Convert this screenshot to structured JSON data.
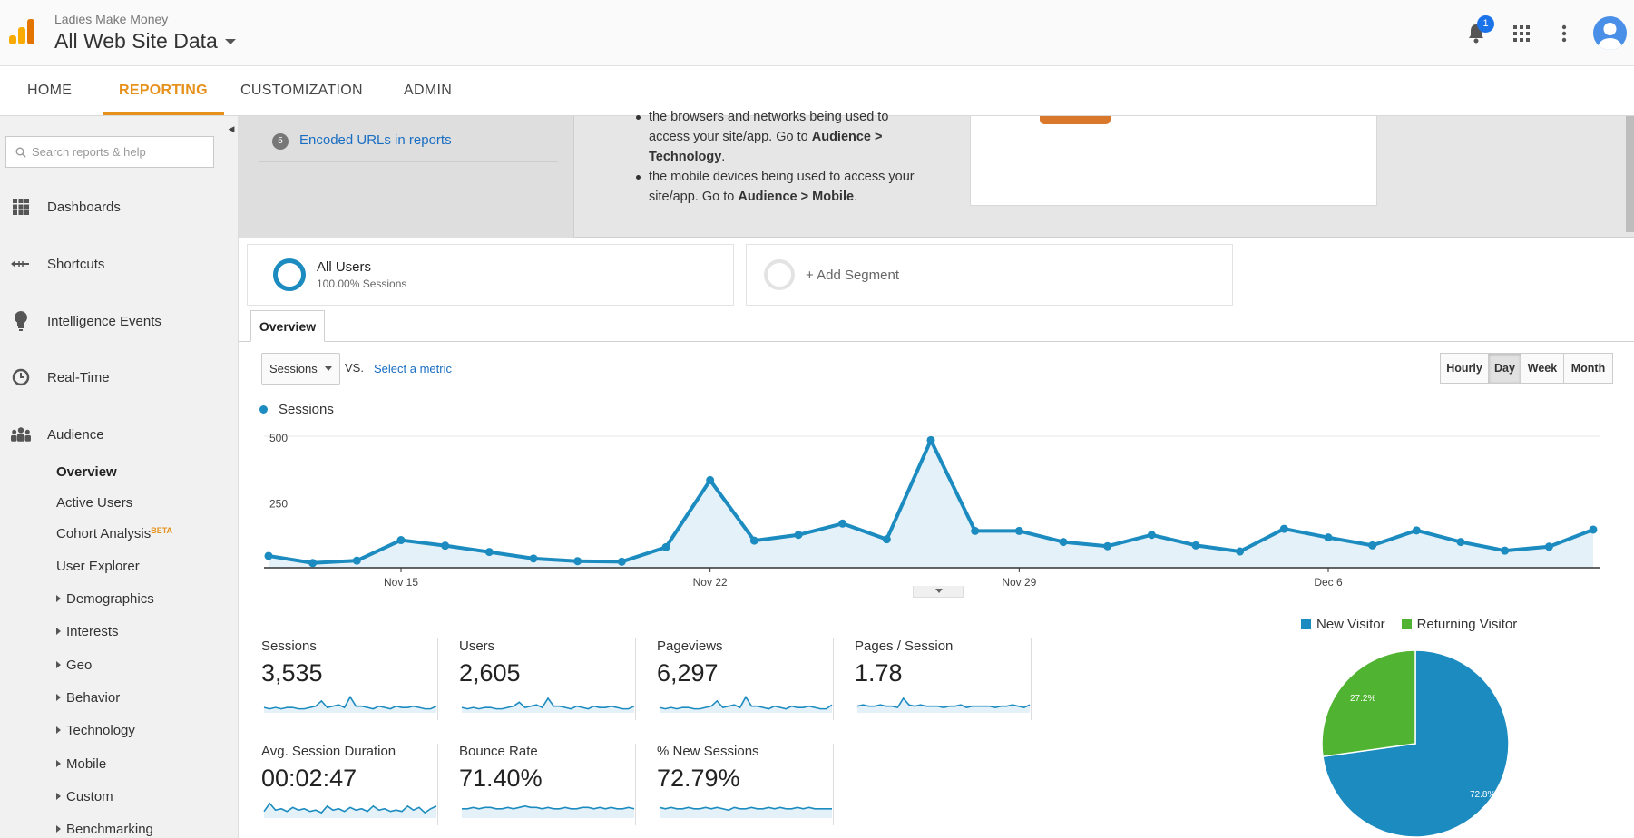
{
  "header": {
    "account": "Ladies Make Money",
    "property": "All Web Site Data",
    "notification_count": "1"
  },
  "nav": {
    "home": "HOME",
    "reporting": "REPORTING",
    "customization": "CUSTOMIZATION",
    "admin": "ADMIN"
  },
  "sidebar": {
    "search_placeholder": "Search reports & help",
    "items": [
      {
        "label": "Dashboards",
        "icon": "grid-icon"
      },
      {
        "label": "Shortcuts",
        "icon": "shortcut-arrow-icon"
      },
      {
        "label": "Intelligence Events",
        "icon": "lightbulb-icon"
      },
      {
        "label": "Real-Time",
        "icon": "clock-icon"
      },
      {
        "label": "Audience",
        "icon": "people-icon"
      }
    ],
    "audience_sub": {
      "overview": "Overview",
      "active_users": "Active Users",
      "cohort": "Cohort Analysis",
      "cohort_badge": "BETA",
      "user_explorer": "User Explorer",
      "groups": [
        "Demographics",
        "Interests",
        "Geo",
        "Behavior",
        "Technology",
        "Mobile",
        "Custom",
        "Benchmarking"
      ]
    }
  },
  "banner": {
    "item_number": "5",
    "encoded_urls": "Encoded URLs in reports",
    "line1_top": "the browsers and networks being used to",
    "line1_a": "access your site/app. Go to ",
    "line1_b": "Audience >",
    "line1_c": "Technology",
    "line1_d": ".",
    "line2_a": "the mobile devices being used to access your",
    "line2_b": "site/app. Go to ",
    "line2_c": "Audience > Mobile",
    "line2_d": "."
  },
  "segments": {
    "all_users": "All Users",
    "all_users_sub": "100.00% Sessions",
    "add": "+ Add Segment"
  },
  "tabs": {
    "overview": "Overview"
  },
  "controls": {
    "metric": "Sessions",
    "vs": "VS.",
    "select_metric": "Select a metric",
    "periods": [
      "Hourly",
      "Day",
      "Week",
      "Month"
    ],
    "active_period": "Day"
  },
  "colors": {
    "accent": "#e6911b",
    "series": "#1b8bc0",
    "new_visitor": "#1b8bc0",
    "returning_visitor": "#50b432",
    "link": "#1a6ec2"
  },
  "chart_data": {
    "type": "line",
    "series": [
      {
        "name": "Sessions",
        "values": [
          45,
          18,
          27,
          105,
          84,
          60,
          35,
          25,
          23,
          78,
          333,
          103,
          125,
          168,
          108,
          485,
          140,
          140,
          98,
          82,
          125,
          85,
          62,
          148,
          115,
          85,
          142,
          98,
          65,
          80,
          145
        ]
      }
    ],
    "x_tick_labels": [
      "Nov 15",
      "Nov 22",
      "Nov 29",
      "Dec 6"
    ],
    "x_tick_index": [
      3,
      10,
      17,
      24
    ],
    "y_tick_labels": [
      "500",
      "250"
    ],
    "y_ticks": [
      500,
      250
    ],
    "ylim": [
      0,
      500
    ],
    "grid": true
  },
  "metrics": [
    {
      "label": "Sessions",
      "value": "3,535",
      "spark": [
        4,
        3,
        4,
        3,
        4,
        4,
        3,
        3,
        4,
        5,
        9,
        4,
        5,
        6,
        4,
        12,
        5,
        5,
        4,
        3,
        5,
        4,
        3,
        5,
        4,
        4,
        5,
        4,
        3,
        3,
        5
      ]
    },
    {
      "label": "Users",
      "value": "2,605",
      "spark": [
        4,
        3,
        4,
        3,
        4,
        4,
        3,
        3,
        4,
        5,
        8,
        4,
        5,
        6,
        4,
        11,
        5,
        5,
        4,
        3,
        5,
        4,
        3,
        5,
        4,
        4,
        5,
        4,
        3,
        3,
        5
      ]
    },
    {
      "label": "Pageviews",
      "value": "6,297",
      "spark": [
        4,
        3,
        4,
        3,
        4,
        4,
        3,
        3,
        4,
        5,
        9,
        4,
        5,
        6,
        4,
        12,
        5,
        5,
        4,
        3,
        5,
        4,
        3,
        5,
        4,
        4,
        5,
        4,
        3,
        3,
        6
      ]
    },
    {
      "label": "Pages / Session",
      "value": "1.78",
      "spark": [
        5,
        6,
        5,
        5,
        6,
        5,
        5,
        4,
        11,
        6,
        5,
        6,
        5,
        5,
        5,
        4,
        5,
        5,
        6,
        4,
        5,
        5,
        5,
        5,
        4,
        5,
        5,
        6,
        5,
        4,
        6
      ]
    },
    {
      "label": "Avg. Session Duration",
      "value": "00:02:47",
      "spark": [
        5,
        11,
        6,
        7,
        5,
        8,
        6,
        7,
        5,
        6,
        4,
        9,
        6,
        7,
        5,
        8,
        6,
        7,
        5,
        9,
        6,
        7,
        5,
        6,
        5,
        9,
        6,
        8,
        4,
        7,
        9
      ]
    },
    {
      "label": "Bounce Rate",
      "value": "71.40%",
      "spark": [
        7,
        7,
        8,
        7,
        8,
        8,
        7,
        7,
        8,
        7,
        8,
        9,
        8,
        8,
        7,
        8,
        7,
        7,
        8,
        7,
        7,
        8,
        8,
        7,
        8,
        7,
        8,
        7,
        7,
        8,
        7
      ]
    },
    {
      "label": "% New Sessions",
      "value": "72.79%",
      "spark": [
        8,
        7,
        8,
        7,
        7,
        8,
        7,
        7,
        8,
        7,
        8,
        7,
        6,
        8,
        7,
        7,
        8,
        7,
        7,
        8,
        7,
        8,
        7,
        7,
        8,
        7,
        8,
        7,
        7,
        7,
        7
      ]
    }
  ],
  "pie": {
    "legend": [
      "New Visitor",
      "Returning Visitor"
    ],
    "new_pct": 72.8,
    "new_label": "72.8%",
    "returning_pct": 27.2,
    "returning_label": "27.2%"
  }
}
